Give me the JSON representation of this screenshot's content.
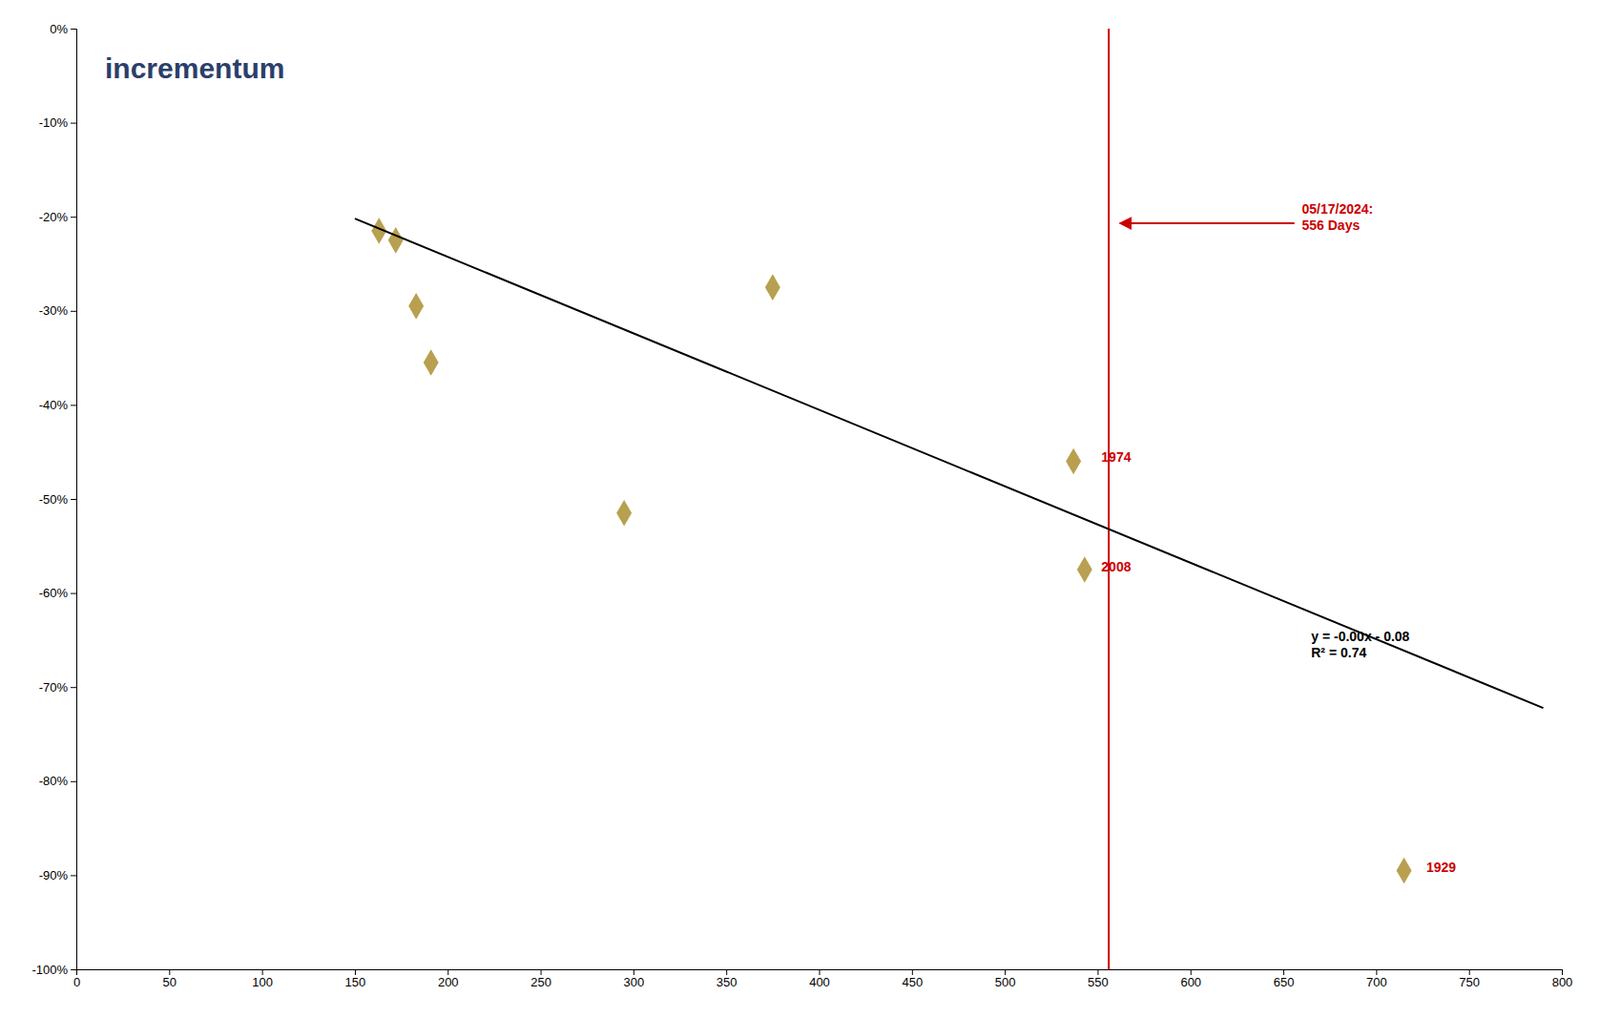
{
  "chart_data": {
    "type": "scatter",
    "series": [
      {
        "type": "scatter",
        "color": "#b8a050",
        "marker": "diamond",
        "x": [
          163,
          172,
          183,
          191,
          295,
          375,
          537,
          543,
          715
        ],
        "values": [
          -0.215,
          -0.225,
          -0.295,
          -0.355,
          -0.515,
          -0.275,
          -0.46,
          -0.575,
          -0.895
        ]
      },
      {
        "type": "line",
        "color": "black",
        "line_style": "solid",
        "x": [
          150,
          790
        ],
        "values": [
          -0.20195,
          -0.72227
        ]
      }
    ],
    "vline": {
      "x": 556,
      "color": "#cc0000"
    },
    "arrow": {
      "x": [
        656,
        562
      ],
      "y": -0.207,
      "color": "#cc0000"
    },
    "annotations": [
      {
        "text": "05/17/2024:\n556 Days",
        "x": 660,
        "y": -0.2,
        "color": "#cc0000"
      },
      {
        "text": "1974",
        "x": 552,
        "y": -0.455,
        "color": "#cc0000"
      },
      {
        "text": "2008",
        "x": 552,
        "y": -0.572,
        "color": "#cc0000"
      },
      {
        "text": "1929",
        "x": 727,
        "y": -0.892,
        "color": "#cc0000"
      },
      {
        "text": "y = -0.00x - 0.08\nR² = 0.74",
        "x": 665,
        "y": -0.655,
        "color": "black"
      },
      {
        "text": "incrementum",
        "color": "#2b3f6b"
      }
    ],
    "xlim": [
      0,
      800
    ],
    "ylim": [
      -1.0,
      0.0
    ],
    "xticks": [
      0,
      50,
      100,
      150,
      200,
      250,
      300,
      350,
      400,
      450,
      500,
      550,
      600,
      650,
      700,
      750,
      800
    ],
    "yticks": [
      {
        "value": 0.0,
        "label": "0%"
      },
      {
        "value": -0.1,
        "label": "-10%"
      },
      {
        "value": -0.2,
        "label": "-20%"
      },
      {
        "value": -0.3,
        "label": "-30%"
      },
      {
        "value": -0.4,
        "label": "-40%"
      },
      {
        "value": -0.5,
        "label": "-50%"
      },
      {
        "value": -0.6,
        "label": "-60%"
      },
      {
        "value": -0.7,
        "label": "-70%"
      },
      {
        "value": -0.8,
        "label": "-80%"
      },
      {
        "value": -0.9,
        "label": "-90%"
      },
      {
        "value": -1.0,
        "label": "-100%"
      }
    ],
    "grid": false
  }
}
